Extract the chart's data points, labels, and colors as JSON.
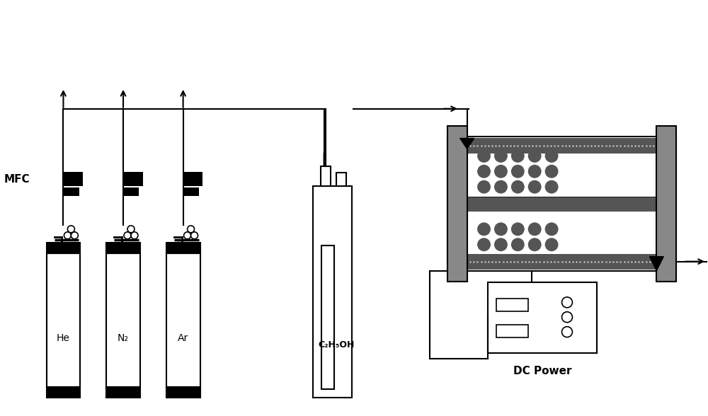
{
  "bg_color": "#ffffff",
  "line_color": "#000000",
  "gray_color": "#888888",
  "dark_gray": "#555555",
  "mid_gray": "#777777",
  "black": "#000000",
  "labels": {
    "He": "He",
    "N2": "N₂",
    "Ar": "Ar",
    "MFC": "MFC",
    "C2H5OH": "C₂H₅OH",
    "DC_Power": "DC Power"
  },
  "figsize": [
    10.0,
    5.88
  ],
  "dpi": 100,
  "xlim": [
    0,
    10
  ],
  "ylim": [
    0,
    5.88
  ]
}
